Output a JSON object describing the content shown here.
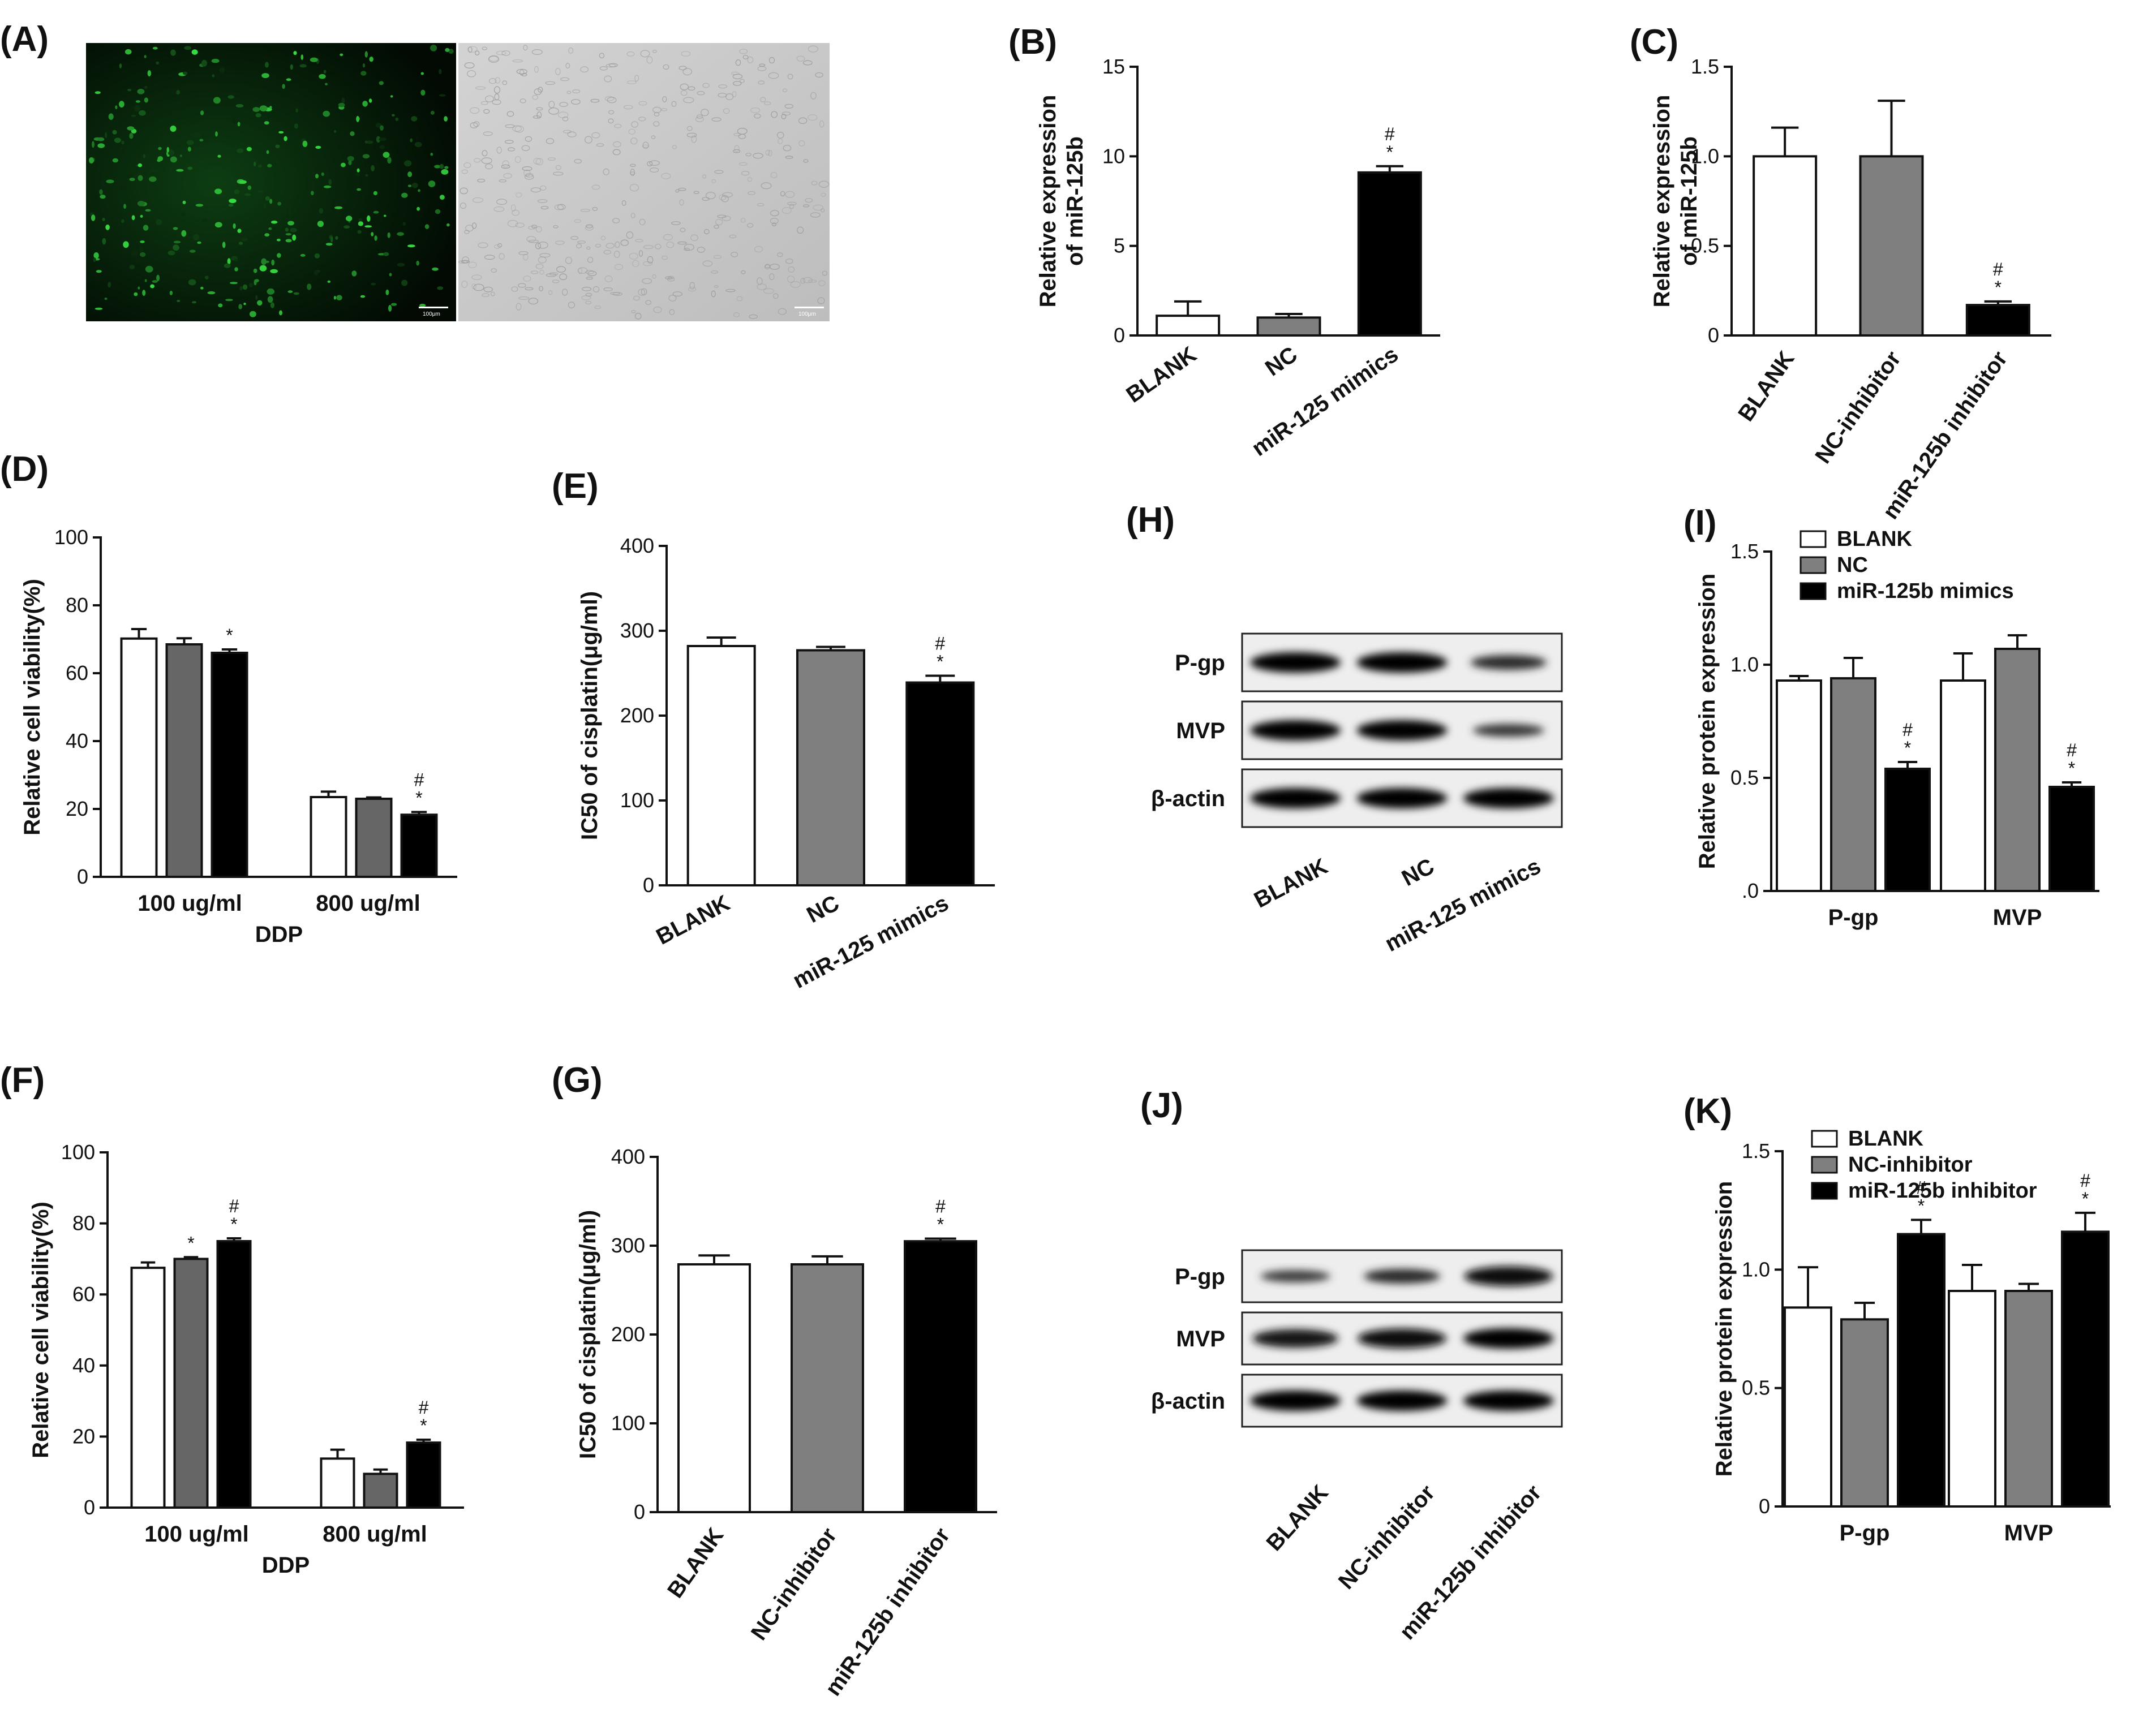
{
  "panels": [
    {
      "id": "A",
      "letter": "(A)",
      "type": "image",
      "scale_bar_labels": [
        "100μm",
        "100μm"
      ]
    },
    {
      "id": "B",
      "letter": "(B)",
      "type": "bar"
    },
    {
      "id": "C",
      "letter": "(C)",
      "type": "bar"
    },
    {
      "id": "D",
      "letter": "(D)",
      "type": "grouped-bar"
    },
    {
      "id": "E",
      "letter": "(E)",
      "type": "bar"
    },
    {
      "id": "H",
      "letter": "(H)",
      "type": "blot"
    },
    {
      "id": "I",
      "letter": "(I)",
      "type": "grouped-bar"
    },
    {
      "id": "F",
      "letter": "(F)",
      "type": "grouped-bar"
    },
    {
      "id": "G",
      "letter": "(G)",
      "type": "bar"
    },
    {
      "id": "J",
      "letter": "(J)",
      "type": "blot"
    },
    {
      "id": "K",
      "letter": "(K)",
      "type": "grouped-bar"
    }
  ],
  "chart_data": [
    {
      "panel": "B",
      "type": "bar",
      "ylabel_lines": [
        "Relative expression",
        "of miR-125b"
      ],
      "ylim": [
        0,
        15
      ],
      "yticks": [
        0,
        5,
        10,
        15
      ],
      "ytick_labels": [
        "0",
        "5",
        "10",
        "15"
      ],
      "categories": [
        "BLANK",
        "NC",
        "miR-125 mimics"
      ],
      "values": [
        1.1,
        1.0,
        9.1
      ],
      "errors": [
        0.8,
        0.2,
        0.35
      ],
      "fills": [
        "#ffffff",
        "#7f7f7f",
        "#000000"
      ],
      "sig": [
        [],
        [],
        [
          "#",
          "*"
        ]
      ]
    },
    {
      "panel": "C",
      "type": "bar",
      "ylabel_lines": [
        "Relative expression",
        "of miR-125b"
      ],
      "ylim": [
        0,
        1.5
      ],
      "yticks": [
        0,
        0.5,
        1.0,
        1.5
      ],
      "ytick_labels": [
        "0",
        "0.5",
        "1.0",
        "1.5"
      ],
      "categories": [
        "BLANK",
        "NC-inhibitor",
        "miR-125b inhibitor"
      ],
      "values": [
        1.0,
        1.0,
        0.17
      ],
      "errors": [
        0.16,
        0.31,
        0.02
      ],
      "fills": [
        "#ffffff",
        "#7f7f7f",
        "#000000"
      ],
      "sig": [
        [],
        [],
        [
          "#",
          "*"
        ]
      ]
    },
    {
      "panel": "D",
      "type": "grouped-bar",
      "ylabel_lines": [
        "Relative cell viability(%)"
      ],
      "xlabel": "DDP",
      "ylim": [
        0,
        100
      ],
      "yticks": [
        0,
        20,
        40,
        60,
        80,
        100
      ],
      "ytick_labels": [
        "0",
        "20",
        "40",
        "60",
        "80",
        "100"
      ],
      "categories": [
        "100 ug/ml",
        "800 ug/ml"
      ],
      "series": [
        {
          "values": [
            70.2,
            23.5
          ],
          "errors": [
            2.8,
            1.6
          ],
          "fill": "#ffffff",
          "sig": [
            [],
            []
          ]
        },
        {
          "values": [
            68.5,
            23.0
          ],
          "errors": [
            1.8,
            0.4
          ],
          "fill": "#666666",
          "sig": [
            [],
            []
          ]
        },
        {
          "values": [
            66.0,
            18.3
          ],
          "errors": [
            1.0,
            0.8
          ],
          "fill": "#000000",
          "sig": [
            [
              "*"
            ],
            [
              "#",
              "*"
            ]
          ]
        }
      ]
    },
    {
      "panel": "E",
      "type": "bar",
      "ylabel_lines": [
        "IC50 of cisplatin(μg/ml)"
      ],
      "ylim": [
        0,
        400
      ],
      "yticks": [
        0,
        100,
        200,
        300,
        400
      ],
      "ytick_labels": [
        "0",
        "100",
        "200",
        "300",
        "400"
      ],
      "categories": [
        "BLANK",
        "NC",
        "miR-125 mimics"
      ],
      "values": [
        282,
        277,
        239
      ],
      "errors": [
        10,
        4,
        8
      ],
      "fills": [
        "#ffffff",
        "#7f7f7f",
        "#000000"
      ],
      "sig": [
        [],
        [],
        [
          "#",
          "*"
        ]
      ]
    },
    {
      "panel": "I",
      "type": "grouped-bar",
      "ylabel_lines": [
        "Relative protein expression"
      ],
      "ylim": [
        0,
        1.5
      ],
      "yticks": [
        0,
        0.5,
        1.0,
        1.5
      ],
      "ytick_labels": [
        ".0",
        "0.5",
        "1.0",
        "1.5"
      ],
      "categories": [
        "P-gp",
        "MVP"
      ],
      "legend": [
        "BLANK",
        "NC",
        "miR-125b mimics"
      ],
      "series": [
        {
          "values": [
            0.93,
            0.93
          ],
          "errors": [
            0.02,
            0.12
          ],
          "fill": "#ffffff",
          "sig": [
            [],
            []
          ]
        },
        {
          "values": [
            0.94,
            1.07
          ],
          "errors": [
            0.09,
            0.06
          ],
          "fill": "#7f7f7f",
          "sig": [
            [],
            []
          ]
        },
        {
          "values": [
            0.54,
            0.46
          ],
          "errors": [
            0.03,
            0.02
          ],
          "fill": "#000000",
          "sig": [
            [
              "#",
              "*"
            ],
            [
              "#",
              "*"
            ]
          ]
        }
      ]
    },
    {
      "panel": "F",
      "type": "grouped-bar",
      "ylabel_lines": [
        "Relative cell viability(%)"
      ],
      "xlabel": "DDP",
      "ylim": [
        0,
        100
      ],
      "yticks": [
        0,
        20,
        40,
        60,
        80,
        100
      ],
      "ytick_labels": [
        "0",
        "20",
        "40",
        "60",
        "80",
        "100"
      ],
      "categories": [
        "100 ug/ml",
        "800 ug/ml"
      ],
      "series": [
        {
          "values": [
            67.5,
            13.8
          ],
          "errors": [
            1.5,
            2.5
          ],
          "fill": "#ffffff",
          "sig": [
            [],
            []
          ]
        },
        {
          "values": [
            70.0,
            9.5
          ],
          "errors": [
            0.5,
            1.2
          ],
          "fill": "#666666",
          "sig": [
            [
              "*"
            ],
            []
          ]
        },
        {
          "values": [
            75.0,
            18.3
          ],
          "errors": [
            0.8,
            0.8
          ],
          "fill": "#000000",
          "sig": [
            [
              "#",
              "*"
            ],
            [
              "#",
              "*"
            ]
          ]
        }
      ]
    },
    {
      "panel": "G",
      "type": "bar",
      "ylabel_lines": [
        "IC50 of cisplatin(μg/ml)"
      ],
      "ylim": [
        0,
        400
      ],
      "yticks": [
        0,
        100,
        200,
        300,
        400
      ],
      "ytick_labels": [
        "0",
        "100",
        "200",
        "300",
        "400"
      ],
      "categories": [
        "BLANK",
        "NC-inhibitor",
        "miR-125b inhibitor"
      ],
      "values": [
        279,
        279,
        305
      ],
      "errors": [
        10,
        9,
        3
      ],
      "fills": [
        "#ffffff",
        "#7f7f7f",
        "#000000"
      ],
      "sig": [
        [],
        [],
        [
          "#",
          "*"
        ]
      ]
    },
    {
      "panel": "K",
      "type": "grouped-bar",
      "ylabel_lines": [
        "Relative protein expression"
      ],
      "ylim": [
        0,
        1.5
      ],
      "yticks": [
        0,
        0.5,
        1.0,
        1.5
      ],
      "ytick_labels": [
        "0",
        "0.5",
        "1.0",
        "1.5"
      ],
      "categories": [
        "P-gp",
        "MVP"
      ],
      "legend": [
        "BLANK",
        "NC-inhibitor",
        "miR-125b inhibitor"
      ],
      "series": [
        {
          "values": [
            0.84,
            0.91
          ],
          "errors": [
            0.17,
            0.11
          ],
          "fill": "#ffffff",
          "sig": [
            [],
            []
          ]
        },
        {
          "values": [
            0.79,
            0.91
          ],
          "errors": [
            0.07,
            0.03
          ],
          "fill": "#7f7f7f",
          "sig": [
            [],
            []
          ]
        },
        {
          "values": [
            1.15,
            1.16
          ],
          "errors": [
            0.06,
            0.08
          ],
          "fill": "#000000",
          "sig": [
            [
              "#",
              "*"
            ],
            [
              "#",
              "*"
            ]
          ]
        }
      ]
    }
  ],
  "blots": [
    {
      "panel": "H",
      "bands": [
        "P-gp",
        "MVP",
        "β-actin"
      ],
      "lanes": [
        "BLANK",
        "NC",
        "miR-125 mimics"
      ],
      "intensity": [
        [
          1.0,
          1.0,
          0.55
        ],
        [
          1.0,
          1.0,
          0.4
        ],
        [
          1.0,
          1.0,
          1.0
        ]
      ]
    },
    {
      "panel": "J",
      "bands": [
        "P-gp",
        "MVP",
        "β-actin"
      ],
      "lanes": [
        "BLANK",
        "NC-inhibitor",
        "miR-125b inhibitor"
      ],
      "intensity": [
        [
          0.35,
          0.55,
          0.95
        ],
        [
          0.85,
          0.95,
          1.0
        ],
        [
          1.0,
          1.0,
          1.0
        ]
      ]
    }
  ],
  "colors": {
    "fluorescence": "#2fcf3a",
    "brightfield": "#c9c9c9",
    "axis": "#111111"
  }
}
